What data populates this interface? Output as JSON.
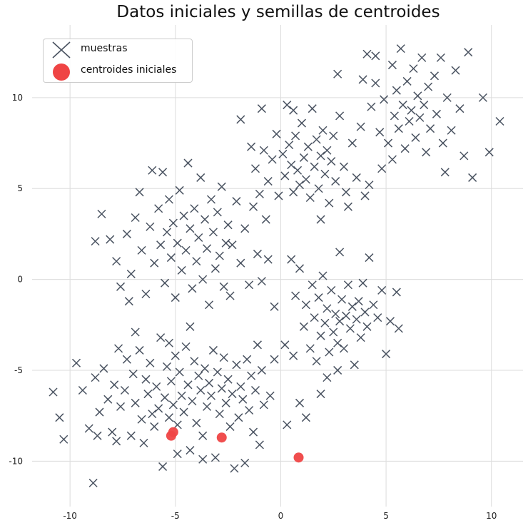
{
  "chart_data": {
    "type": "scatter",
    "title": "Datos iniciales y semillas de centroides",
    "xlabel": "",
    "ylabel": "",
    "xlim": [
      -11.8,
      11.5
    ],
    "ylim": [
      -12.5,
      14
    ],
    "xticks": [
      -10,
      -5,
      0,
      5,
      10
    ],
    "yticks": [
      -10,
      -5,
      0,
      5,
      10
    ],
    "grid": true,
    "legend_position": "top-left",
    "series": [
      {
        "name": "muestras",
        "marker": "x",
        "color": "#4a5361",
        "points": [
          [
            -10.8,
            -6.2
          ],
          [
            -10.3,
            -8.8
          ],
          [
            -8.9,
            -11.2
          ],
          [
            -10.5,
            -7.6
          ],
          [
            -9.7,
            -4.6
          ],
          [
            -9.4,
            -6.1
          ],
          [
            -9.1,
            -8.2
          ],
          [
            -8.8,
            -5.4
          ],
          [
            -8.6,
            -7.3
          ],
          [
            -8.4,
            -4.9
          ],
          [
            -8.2,
            -6.6
          ],
          [
            -8.0,
            -8.4
          ],
          [
            -7.9,
            -5.8
          ],
          [
            -7.7,
            -3.8
          ],
          [
            -7.6,
            -7.0
          ],
          [
            -7.4,
            -6.1
          ],
          [
            -7.3,
            -4.4
          ],
          [
            -7.1,
            -8.6
          ],
          [
            -7.0,
            -5.2
          ],
          [
            -6.9,
            -6.8
          ],
          [
            -6.7,
            -3.9
          ],
          [
            -6.6,
            -7.7
          ],
          [
            -6.4,
            -5.5
          ],
          [
            -6.3,
            -6.3
          ],
          [
            -6.2,
            -4.6
          ],
          [
            -6.0,
            -8.1
          ],
          [
            -5.9,
            -5.9
          ],
          [
            -5.8,
            -7.1
          ],
          [
            -5.7,
            -3.2
          ],
          [
            -5.5,
            -6.5
          ],
          [
            -5.4,
            -4.8
          ],
          [
            -5.3,
            -7.6
          ],
          [
            -5.2,
            -5.6
          ],
          [
            -5.1,
            -6.9
          ],
          [
            -5.0,
            -4.2
          ],
          [
            -4.9,
            -8.0
          ],
          [
            -4.8,
            -5.1
          ],
          [
            -4.7,
            -6.4
          ],
          [
            -4.6,
            -7.3
          ],
          [
            -4.5,
            -3.7
          ],
          [
            -4.4,
            -5.8
          ],
          [
            -4.3,
            -9.4
          ],
          [
            -4.2,
            -6.7
          ],
          [
            -4.1,
            -4.5
          ],
          [
            -4.0,
            -7.9
          ],
          [
            -3.9,
            -5.3
          ],
          [
            -3.8,
            -6.1
          ],
          [
            -3.7,
            -8.6
          ],
          [
            -3.6,
            -4.9
          ],
          [
            -3.5,
            -7.0
          ],
          [
            -3.4,
            -5.7
          ],
          [
            -3.3,
            -6.4
          ],
          [
            -3.2,
            -3.9
          ],
          [
            -3.1,
            -9.8
          ],
          [
            -3.0,
            -5.1
          ],
          [
            -2.9,
            -7.4
          ],
          [
            -2.8,
            -6.0
          ],
          [
            -2.7,
            -4.3
          ],
          [
            -2.6,
            -6.8
          ],
          [
            -2.5,
            -5.5
          ],
          [
            -2.4,
            -8.1
          ],
          [
            -2.3,
            -6.3
          ],
          [
            -2.2,
            -10.4
          ],
          [
            -2.1,
            -4.7
          ],
          [
            -2.0,
            -7.6
          ],
          [
            -1.9,
            -5.9
          ],
          [
            -1.8,
            -6.6
          ],
          [
            -1.7,
            -10.1
          ],
          [
            -1.6,
            -4.4
          ],
          [
            -1.5,
            -7.2
          ],
          [
            -1.4,
            -5.3
          ],
          [
            -1.3,
            -8.4
          ],
          [
            -1.2,
            -6.1
          ],
          [
            -1.1,
            -3.6
          ],
          [
            -1.0,
            -9.1
          ],
          [
            -0.9,
            -5.0
          ],
          [
            -0.8,
            -6.9
          ],
          [
            -0.5,
            -6.4
          ],
          [
            -0.3,
            -4.4
          ],
          [
            0.3,
            -8.0
          ],
          [
            -6.5,
            -9.0
          ],
          [
            -5.6,
            -10.3
          ],
          [
            -4.9,
            -9.6
          ],
          [
            -3.7,
            -9.9
          ],
          [
            -6.9,
            -2.9
          ],
          [
            -7.8,
            -8.9
          ],
          [
            -8.7,
            -8.6
          ],
          [
            -5.3,
            -3.5
          ],
          [
            -4.3,
            -2.6
          ],
          [
            -6.1,
            -7.4
          ],
          [
            -8.8,
            2.1
          ],
          [
            -8.5,
            3.6
          ],
          [
            -8.1,
            2.2
          ],
          [
            -7.8,
            1.0
          ],
          [
            -7.6,
            -0.4
          ],
          [
            -7.3,
            2.5
          ],
          [
            -7.1,
            0.3
          ],
          [
            -6.9,
            3.4
          ],
          [
            -6.7,
            4.8
          ],
          [
            -6.6,
            1.6
          ],
          [
            -6.4,
            -0.8
          ],
          [
            -6.2,
            2.9
          ],
          [
            -6.1,
            6.0
          ],
          [
            -6.0,
            0.9
          ],
          [
            -5.8,
            3.9
          ],
          [
            -5.7,
            1.9
          ],
          [
            -5.6,
            5.9
          ],
          [
            -5.5,
            -0.2
          ],
          [
            -5.4,
            2.6
          ],
          [
            -5.3,
            4.4
          ],
          [
            -5.2,
            1.2
          ],
          [
            -5.1,
            3.1
          ],
          [
            -5.0,
            -1.0
          ],
          [
            -4.9,
            2.0
          ],
          [
            -4.8,
            4.9
          ],
          [
            -4.7,
            0.5
          ],
          [
            -4.6,
            3.5
          ],
          [
            -4.5,
            1.6
          ],
          [
            -4.4,
            6.4
          ],
          [
            -4.3,
            2.8
          ],
          [
            -4.2,
            -0.5
          ],
          [
            -4.1,
            3.9
          ],
          [
            -4.0,
            1.0
          ],
          [
            -3.9,
            2.3
          ],
          [
            -3.8,
            5.6
          ],
          [
            -3.7,
            0.0
          ],
          [
            -3.6,
            3.3
          ],
          [
            -3.5,
            1.7
          ],
          [
            -3.4,
            -1.4
          ],
          [
            -3.3,
            4.4
          ],
          [
            -3.2,
            2.6
          ],
          [
            -3.1,
            0.6
          ],
          [
            -3.0,
            3.7
          ],
          [
            -2.9,
            1.3
          ],
          [
            -2.8,
            5.1
          ],
          [
            -2.7,
            -0.4
          ],
          [
            -2.6,
            2.0
          ],
          [
            -2.5,
            3.0
          ],
          [
            -2.4,
            -0.9
          ],
          [
            -2.3,
            1.9
          ],
          [
            -2.1,
            4.3
          ],
          [
            -1.9,
            0.9
          ],
          [
            -1.7,
            2.8
          ],
          [
            -1.5,
            -0.3
          ],
          [
            -1.3,
            4.0
          ],
          [
            -1.1,
            1.4
          ],
          [
            -0.9,
            -0.1
          ],
          [
            -0.7,
            3.3
          ],
          [
            -0.6,
            1.1
          ],
          [
            -7.2,
            -1.2
          ],
          [
            -1.2,
            6.1
          ],
          [
            -1.0,
            4.7
          ],
          [
            -0.8,
            7.1
          ],
          [
            -0.6,
            5.4
          ],
          [
            -0.4,
            6.6
          ],
          [
            -0.2,
            8.0
          ],
          [
            -0.1,
            4.6
          ],
          [
            0.1,
            6.9
          ],
          [
            0.2,
            5.7
          ],
          [
            0.3,
            9.6
          ],
          [
            0.4,
            7.4
          ],
          [
            0.5,
            6.3
          ],
          [
            0.6,
            4.8
          ],
          [
            0.7,
            7.9
          ],
          [
            0.8,
            6.0
          ],
          [
            0.9,
            5.2
          ],
          [
            1.0,
            8.6
          ],
          [
            1.1,
            6.7
          ],
          [
            1.2,
            5.5
          ],
          [
            1.3,
            7.3
          ],
          [
            1.4,
            4.5
          ],
          [
            1.5,
            9.4
          ],
          [
            1.6,
            6.2
          ],
          [
            1.7,
            7.7
          ],
          [
            1.8,
            5.0
          ],
          [
            1.9,
            6.8
          ],
          [
            2.0,
            8.2
          ],
          [
            2.1,
            5.8
          ],
          [
            2.2,
            7.1
          ],
          [
            2.3,
            4.2
          ],
          [
            2.4,
            6.5
          ],
          [
            2.5,
            7.9
          ],
          [
            2.6,
            5.4
          ],
          [
            2.8,
            9.0
          ],
          [
            3.0,
            6.2
          ],
          [
            3.2,
            4.0
          ],
          [
            3.4,
            7.5
          ],
          [
            3.6,
            5.6
          ],
          [
            3.8,
            8.4
          ],
          [
            4.0,
            4.6
          ],
          [
            -1.9,
            8.8
          ],
          [
            -1.4,
            7.3
          ],
          [
            -0.9,
            9.4
          ],
          [
            0.6,
            9.3
          ],
          [
            2.7,
            11.3
          ],
          [
            1.9,
            3.3
          ],
          [
            3.1,
            4.8
          ],
          [
            4.2,
            5.2
          ],
          [
            3.9,
            11.0
          ],
          [
            4.3,
            9.5
          ],
          [
            4.5,
            10.8
          ],
          [
            4.7,
            8.1
          ],
          [
            4.9,
            9.9
          ],
          [
            5.1,
            7.5
          ],
          [
            5.3,
            11.8
          ],
          [
            5.4,
            9.0
          ],
          [
            5.5,
            10.4
          ],
          [
            5.6,
            8.3
          ],
          [
            5.7,
            12.7
          ],
          [
            5.8,
            9.6
          ],
          [
            5.9,
            7.2
          ],
          [
            6.0,
            10.9
          ],
          [
            6.1,
            8.7
          ],
          [
            6.2,
            9.3
          ],
          [
            6.3,
            11.6
          ],
          [
            6.4,
            7.8
          ],
          [
            6.5,
            10.1
          ],
          [
            6.6,
            8.9
          ],
          [
            6.7,
            12.2
          ],
          [
            6.8,
            9.6
          ],
          [
            6.9,
            7.0
          ],
          [
            7.0,
            10.6
          ],
          [
            7.1,
            8.3
          ],
          [
            7.3,
            11.2
          ],
          [
            7.4,
            9.1
          ],
          [
            7.6,
            12.2
          ],
          [
            7.7,
            7.5
          ],
          [
            7.9,
            10.0
          ],
          [
            8.1,
            8.2
          ],
          [
            8.3,
            11.5
          ],
          [
            8.5,
            9.4
          ],
          [
            8.7,
            6.8
          ],
          [
            8.9,
            12.5
          ],
          [
            9.1,
            5.6
          ],
          [
            9.6,
            10.0
          ],
          [
            9.9,
            7.0
          ],
          [
            10.4,
            8.7
          ],
          [
            4.1,
            12.4
          ],
          [
            5.3,
            6.6
          ],
          [
            4.8,
            6.1
          ],
          [
            4.5,
            12.3
          ],
          [
            7.8,
            5.9
          ],
          [
            0.7,
            -0.9
          ],
          [
            0.9,
            0.6
          ],
          [
            1.1,
            -2.6
          ],
          [
            1.2,
            -1.4
          ],
          [
            1.4,
            -3.8
          ],
          [
            1.5,
            -0.3
          ],
          [
            1.6,
            -2.1
          ],
          [
            1.7,
            -4.5
          ],
          [
            1.8,
            -1.0
          ],
          [
            1.9,
            -3.1
          ],
          [
            2.0,
            0.2
          ],
          [
            2.1,
            -2.4
          ],
          [
            2.2,
            -1.6
          ],
          [
            2.3,
            -4.0
          ],
          [
            2.4,
            -0.6
          ],
          [
            2.5,
            -2.9
          ],
          [
            2.6,
            -1.9
          ],
          [
            2.7,
            -3.5
          ],
          [
            2.8,
            -2.3
          ],
          [
            2.9,
            -1.1
          ],
          [
            3.0,
            -3.8
          ],
          [
            3.1,
            -2.0
          ],
          [
            3.2,
            -0.3
          ],
          [
            3.3,
            -2.7
          ],
          [
            3.4,
            -1.5
          ],
          [
            3.5,
            -4.7
          ],
          [
            3.6,
            -2.2
          ],
          [
            3.7,
            -1.2
          ],
          [
            3.8,
            -3.2
          ],
          [
            3.9,
            -0.2
          ],
          [
            4.0,
            -1.8
          ],
          [
            4.1,
            -2.6
          ],
          [
            4.2,
            1.2
          ],
          [
            4.4,
            -1.4
          ],
          [
            4.6,
            -2.1
          ],
          [
            4.8,
            -0.6
          ],
          [
            5.0,
            -4.1
          ],
          [
            5.2,
            -2.3
          ],
          [
            5.5,
            -0.7
          ],
          [
            5.6,
            -2.7
          ],
          [
            0.6,
            -4.2
          ],
          [
            0.9,
            -6.8
          ],
          [
            1.2,
            -7.6
          ],
          [
            1.9,
            -6.3
          ],
          [
            2.2,
            -5.4
          ],
          [
            2.7,
            -5.0
          ],
          [
            0.5,
            1.1
          ],
          [
            2.8,
            1.5
          ],
          [
            -0.3,
            -1.5
          ],
          [
            0.2,
            -3.6
          ]
        ]
      },
      {
        "name": "centroides iniciales",
        "marker": "o",
        "color": "#ef4444",
        "points": [
          [
            -5.2,
            -8.6
          ],
          [
            -5.1,
            -8.4
          ],
          [
            -2.8,
            -8.7
          ],
          [
            0.85,
            -9.8
          ]
        ]
      }
    ]
  }
}
